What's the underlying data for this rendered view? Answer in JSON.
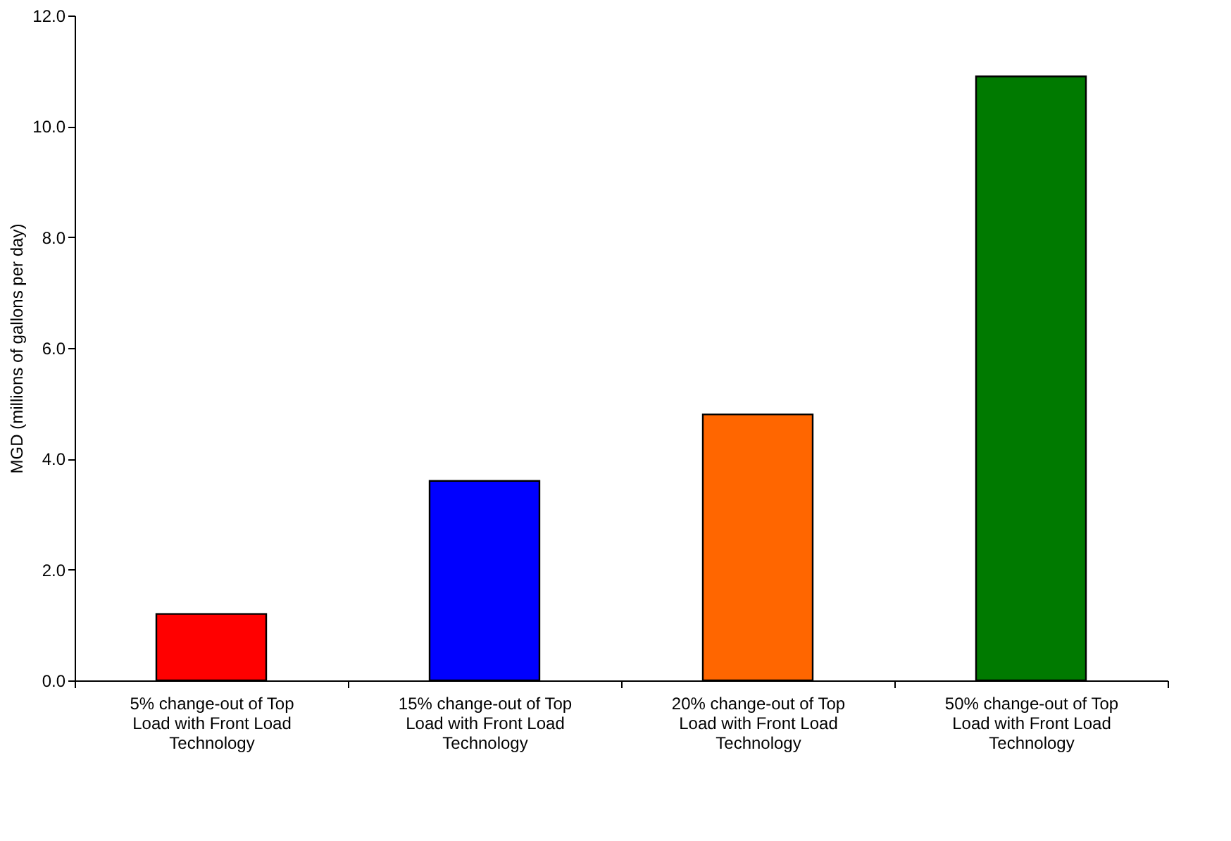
{
  "chart_data": {
    "type": "bar",
    "ylabel": "MGD (millions of gallons per day)",
    "categories": [
      "5% change-out of Top Load with Front Load Technology",
      "15% change-out of Top Load with Front Load Technology",
      "20% change-out of Top Load with Front Load Technology",
      "50% change-out of Top Load with Front Load Technology"
    ],
    "values": [
      1.2,
      3.6,
      4.8,
      10.9
    ],
    "colors": [
      "#ff0000",
      "#0000ff",
      "#ff6600",
      "#007a00"
    ],
    "ylim": [
      0,
      12
    ],
    "yticks": [
      {
        "value": 0,
        "label": "0.0"
      },
      {
        "value": 2,
        "label": "2.0"
      },
      {
        "value": 4,
        "label": "4.0"
      },
      {
        "value": 6,
        "label": "6.0"
      },
      {
        "value": 8,
        "label": "8.0"
      },
      {
        "value": 10,
        "label": "10.0"
      },
      {
        "value": 12,
        "label": "12.0"
      }
    ],
    "grid": false,
    "legend": false
  }
}
